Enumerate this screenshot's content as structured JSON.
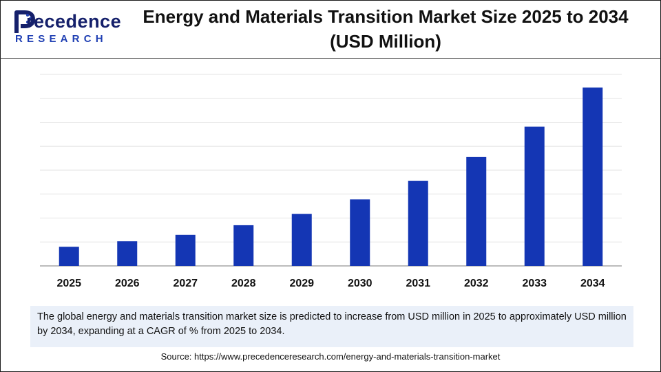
{
  "brand": {
    "logo_letter": "P",
    "logo_word": "recedence",
    "logo_sub": "RESEARCH",
    "brand_color": "#1f3fb3",
    "dark_color": "#15206b"
  },
  "title": {
    "line1": "Energy and Materials Transition Market Size 2025 to 2034",
    "line2": "(USD Million)"
  },
  "chart_data": {
    "type": "bar",
    "title": "Energy and Materials Transition Market Size 2025 to 2034 (USD Million)",
    "xlabel": "",
    "ylabel": "",
    "categories": [
      "2025",
      "2026",
      "2027",
      "2028",
      "2029",
      "2030",
      "2031",
      "2032",
      "2033",
      "2034"
    ],
    "values": [
      8,
      10.3,
      13,
      17,
      21.7,
      27.8,
      35.5,
      45.5,
      58.2,
      74.5
    ],
    "ylim": [
      0,
      80
    ],
    "gridlines": 8,
    "grid": true,
    "bar_color": "#1436b4",
    "value_labels": false
  },
  "description": {
    "text": "The global energy and materials transition market size is predicted to increase from USD million in 2025 to approximately USD million by 2034, expanding at a CAGR of % from 2025 to 2034."
  },
  "source": {
    "text": "Source: https://www.precedenceresearch.com/energy-and-materials-transition-market"
  }
}
